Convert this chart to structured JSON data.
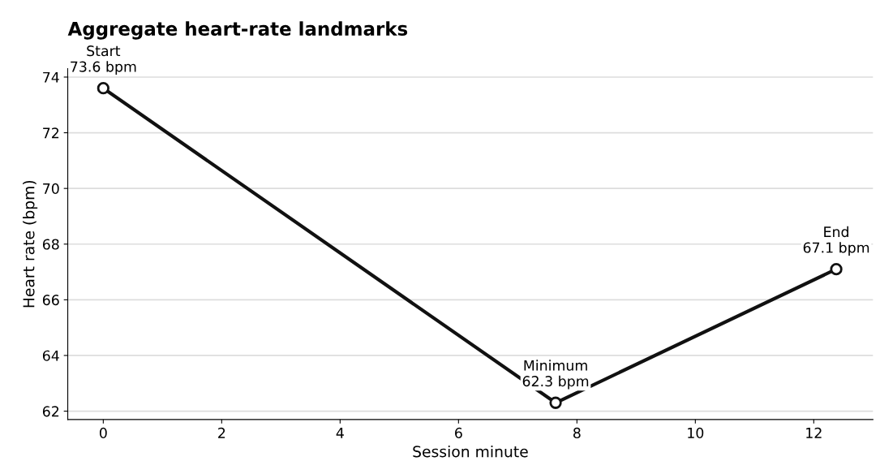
{
  "chart_data": {
    "type": "line",
    "title": "Aggregate heart-rate landmarks",
    "xlabel": "Session minute",
    "ylabel": "Heart rate (bpm)",
    "x": [
      0,
      7.64,
      12.38
    ],
    "series": [
      {
        "color": "#111111",
        "values": [
          73.6,
          62.3,
          67.1
        ]
      }
    ],
    "annotations": [
      {
        "text": "Start\n73.6 bpm",
        "x": 0,
        "y": 73.6
      },
      {
        "text": "Minimum\n62.3 bpm",
        "x": 7.64,
        "y": 62.3
      },
      {
        "text": "End\n67.1 bpm",
        "x": 12.38,
        "y": 67.1
      }
    ],
    "xlim": [
      -0.6,
      13.0
    ],
    "ylim": [
      61.7,
      74.3
    ],
    "xticks": [
      0,
      2,
      4,
      6,
      8,
      10,
      12
    ],
    "yticks": [
      62,
      64,
      66,
      68,
      70,
      72,
      74
    ],
    "grid": "y",
    "marker": "circle",
    "line_style": "solid",
    "legend": false
  }
}
